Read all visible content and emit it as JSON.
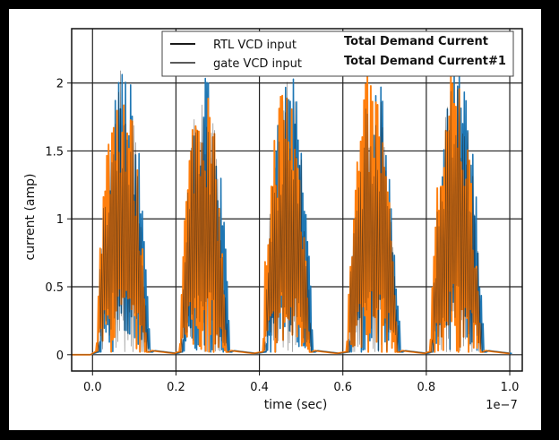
{
  "chart_data": {
    "type": "line",
    "xlabel": "time (sec)",
    "ylabel": "current (amp)",
    "x_offset_label": "1e−7",
    "xlim": [
      -0.05,
      1.03
    ],
    "ylim": [
      -0.12,
      2.4
    ],
    "grid": true,
    "legend_placement": "top-center",
    "x_ticks": [
      {
        "value": 0.0,
        "label": "0.0"
      },
      {
        "value": 0.2,
        "label": "0.2"
      },
      {
        "value": 0.4,
        "label": "0.4"
      },
      {
        "value": 0.6,
        "label": "0.6"
      },
      {
        "value": 0.8,
        "label": "0.8"
      },
      {
        "value": 1.0,
        "label": "1.0"
      }
    ],
    "y_ticks": [
      {
        "value": 0,
        "label": "0"
      },
      {
        "value": 0.5,
        "label": "0.5"
      },
      {
        "value": 1,
        "label": "1"
      },
      {
        "value": 1.5,
        "label": "1.5"
      },
      {
        "value": 2,
        "label": "2"
      }
    ],
    "legend": [
      {
        "label": "RTL VCD input",
        "color": "#1a1a1a"
      },
      {
        "label": "gate VCD input",
        "color": "#5a5a5a"
      },
      {
        "label": "Total Demand Current",
        "color": "#1f77b4"
      },
      {
        "label": "Total Demand Current#1",
        "color": "#ff7f0e"
      }
    ],
    "bursts": [
      {
        "start": 0.01,
        "end": 0.14,
        "peak": 2.15
      },
      {
        "start": 0.21,
        "end": 0.33,
        "peak": 2.1
      },
      {
        "start": 0.41,
        "end": 0.53,
        "peak": 2.1
      },
      {
        "start": 0.61,
        "end": 0.74,
        "peak": 2.1
      },
      {
        "start": 0.81,
        "end": 0.94,
        "peak": 2.15
      }
    ],
    "series": [
      {
        "name": "Total Demand Current",
        "color": "#1f77b4"
      },
      {
        "name": "Total Demand Current#1",
        "color": "#ff7f0e"
      }
    ]
  }
}
